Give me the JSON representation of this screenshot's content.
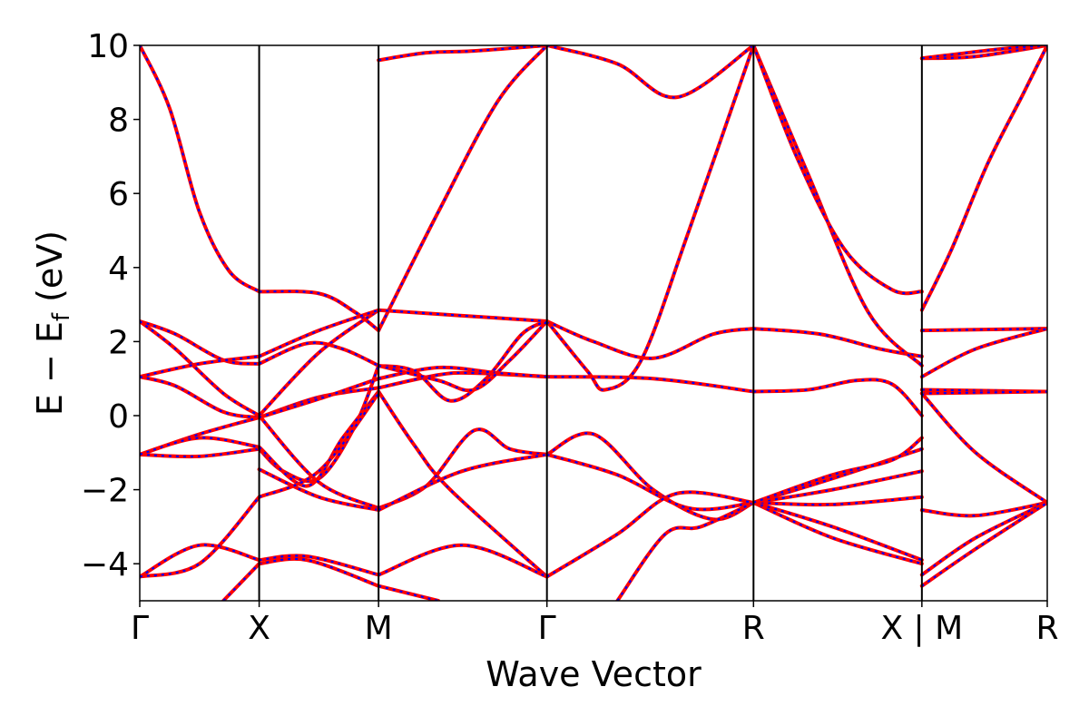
{
  "chart_data": {
    "type": "line",
    "xlabel": "Wave Vector",
    "ylabel": "E − E",
    "ylabel_subscript": "f",
    "ylabel_unit": " (eV)",
    "ylim": [
      -5,
      10
    ],
    "yticks": [
      -4,
      -2,
      0,
      2,
      4,
      6,
      8,
      10
    ],
    "xlim": [
      0,
      7.6
    ],
    "kpoints": [
      {
        "label": "Γ",
        "x": 0
      },
      {
        "label": "X",
        "x": 1
      },
      {
        "label": "M",
        "x": 2
      },
      {
        "label": "Γ",
        "x": 3.41
      },
      {
        "label": "R",
        "x": 5.14
      },
      {
        "label": "X | M",
        "x": 6.55
      },
      {
        "label": "R",
        "x": 7.6
      }
    ],
    "series_colors": {
      "solid": "#ff0000",
      "dashed": "#0000ff"
    },
    "bands": [
      {
        "segment": "Γ-X",
        "x": [
          0,
          0.25,
          0.5,
          0.75,
          1
        ],
        "y": [
          10,
          8.3,
          5.5,
          3.9,
          3.35
        ]
      },
      {
        "segment": "X-M",
        "x": [
          1,
          1.5,
          1.8,
          2
        ],
        "y": [
          3.35,
          3.3,
          2.8,
          2.3
        ]
      },
      {
        "segment": "M-Γ",
        "x": [
          2,
          2.5,
          3,
          3.41
        ],
        "y": [
          2.3,
          5.5,
          8.5,
          10
        ]
      },
      {
        "segment": "Γ-X",
        "x": [
          0,
          0.3,
          0.7,
          1
        ],
        "y": [
          2.55,
          2.2,
          1.5,
          1.4
        ]
      },
      {
        "segment": "X-M",
        "x": [
          1,
          1.4,
          1.7,
          2
        ],
        "y": [
          1.4,
          1.95,
          1.8,
          1.35
        ]
      },
      {
        "segment": "M-Γ",
        "x": [
          2,
          2.3,
          2.6,
          2.9,
          3.2,
          3.41
        ],
        "y": [
          1.35,
          1.2,
          0.4,
          1.0,
          2.2,
          2.55
        ]
      },
      {
        "segment": "Γ-X",
        "x": [
          0,
          0.3,
          0.7,
          1
        ],
        "y": [
          2.55,
          1.8,
          0.6,
          0.0
        ]
      },
      {
        "segment": "X-M",
        "x": [
          1,
          1.5,
          2
        ],
        "y": [
          0.0,
          1.7,
          2.85
        ]
      },
      {
        "segment": "M-Γ",
        "x": [
          2,
          2.7,
          3.41
        ],
        "y": [
          2.85,
          2.7,
          2.55
        ]
      },
      {
        "segment": "Γ-R",
        "x": [
          3.41,
          3.8,
          4.3,
          4.8,
          5.14
        ],
        "y": [
          2.55,
          2.0,
          1.55,
          2.2,
          2.35
        ]
      },
      {
        "segment": "R-X",
        "x": [
          5.14,
          5.7,
          6.2,
          6.55
        ],
        "y": [
          2.35,
          2.2,
          1.8,
          1.6
        ]
      },
      {
        "segment": "Γ-X",
        "x": [
          0,
          0.5,
          1
        ],
        "y": [
          1.05,
          1.4,
          1.6
        ]
      },
      {
        "segment": "X-M",
        "x": [
          1,
          1.5,
          2
        ],
        "y": [
          1.6,
          2.3,
          2.85
        ]
      },
      {
        "segment": "Γ-X",
        "x": [
          0,
          0.3,
          0.7,
          1
        ],
        "y": [
          1.05,
          0.8,
          0.1,
          -0.05
        ]
      },
      {
        "segment": "X-M",
        "x": [
          1,
          1.5,
          2
        ],
        "y": [
          -0.05,
          0.5,
          0.75
        ]
      },
      {
        "segment": "M-Γ",
        "x": [
          2,
          2.5,
          2.8,
          3.41
        ],
        "y": [
          0.75,
          1.1,
          1.15,
          1.05
        ]
      },
      {
        "segment": "Γ-R",
        "x": [
          3.41,
          4.3,
          5.14
        ],
        "y": [
          1.05,
          1.0,
          0.65
        ]
      },
      {
        "segment": "R-X",
        "x": [
          5.14,
          5.6,
          6.0,
          6.3,
          6.55
        ],
        "y": [
          0.65,
          0.7,
          0.95,
          0.85,
          0.0
        ]
      },
      {
        "segment": "Γ-X",
        "x": [
          0,
          0.5,
          1
        ],
        "y": [
          -1.05,
          -0.5,
          -0.05
        ]
      },
      {
        "segment": "X-M",
        "x": [
          1,
          1.5,
          2
        ],
        "y": [
          -0.05,
          0.45,
          1.0
        ]
      },
      {
        "segment": "M-Γ",
        "x": [
          2,
          2.5,
          3,
          3.41
        ],
        "y": [
          1.0,
          1.3,
          1.15,
          1.05
        ]
      },
      {
        "segment": "Γ-R",
        "x": [
          3.41,
          3.75,
          3.9,
          4.2,
          4.6,
          5.14
        ],
        "y": [
          2.55,
          1.2,
          0.7,
          1.5,
          5.0,
          10.0
        ]
      },
      {
        "segment": "R-X",
        "x": [
          5.14,
          5.6,
          6.1,
          6.55
        ],
        "y": [
          10.0,
          6.5,
          2.8,
          1.35
        ]
      },
      {
        "segment": "Γ-X",
        "x": [
          0,
          0.5,
          1
        ],
        "y": [
          -1.05,
          -1.1,
          -0.9
        ]
      },
      {
        "segment": "X-M",
        "x": [
          1,
          1.2,
          1.5,
          1.8,
          2
        ],
        "y": [
          -0.9,
          -1.5,
          -1.7,
          -0.3,
          1.35
        ]
      },
      {
        "segment": "M-Γ",
        "x": [
          2,
          2.5,
          2.8,
          3.1,
          3.41
        ],
        "y": [
          1.35,
          0.95,
          0.7,
          1.5,
          2.55
        ]
      },
      {
        "segment": "Γ-X",
        "x": [
          0,
          0.5,
          1
        ],
        "y": [
          -1.05,
          -0.6,
          -0.85
        ]
      },
      {
        "segment": "X-M",
        "x": [
          1,
          1.4,
          1.7,
          2
        ],
        "y": [
          -0.85,
          -1.9,
          -0.6,
          0.65
        ]
      },
      {
        "segment": "M-Γ",
        "x": [
          2,
          2.3,
          2.6,
          3.41
        ],
        "y": [
          0.65,
          -0.8,
          -2.0,
          -4.35
        ]
      },
      {
        "segment": "X-M",
        "x": [
          1,
          1.5,
          2
        ],
        "y": [
          0.0,
          -1.8,
          -2.5
        ]
      },
      {
        "segment": "M-Γ",
        "x": [
          2,
          2.4,
          2.8,
          3.1,
          3.41
        ],
        "y": [
          -2.5,
          -1.9,
          -0.4,
          -0.9,
          -1.05
        ]
      },
      {
        "segment": "Γ-R",
        "x": [
          3.41,
          3.8,
          4.3,
          4.8,
          5.14
        ],
        "y": [
          -1.05,
          -0.5,
          -2.0,
          -2.8,
          -2.35
        ]
      },
      {
        "segment": "X-M",
        "x": [
          1,
          1.5,
          2
        ],
        "y": [
          -1.45,
          -2.2,
          -2.55
        ]
      },
      {
        "segment": "M-Γ",
        "x": [
          2,
          2.7,
          3.41
        ],
        "y": [
          -2.55,
          -1.5,
          -1.05
        ]
      },
      {
        "segment": "Γ-R",
        "x": [
          3.41,
          4.0,
          4.6,
          5.14
        ],
        "y": [
          -1.05,
          -1.6,
          -2.5,
          -2.35
        ]
      },
      {
        "segment": "Γ-X",
        "x": [
          0,
          0.5,
          1
        ],
        "y": [
          -4.35,
          -3.5,
          -3.9
        ]
      },
      {
        "segment": "X-M",
        "x": [
          1,
          1.4,
          2
        ],
        "y": [
          -3.9,
          -3.8,
          -4.3
        ]
      },
      {
        "segment": "M-Γ",
        "x": [
          2,
          2.7,
          3.41
        ],
        "y": [
          -4.3,
          -3.5,
          -4.35
        ]
      },
      {
        "segment": "Γ-R",
        "x": [
          3.41,
          4.0,
          4.5,
          5.14
        ],
        "y": [
          -4.35,
          -3.2,
          -2.1,
          -2.35
        ]
      },
      {
        "segment": "Γ-X",
        "x": [
          0,
          0.5,
          1
        ],
        "y": [
          -4.35,
          -4.0,
          -2.2
        ]
      },
      {
        "segment": "X-M",
        "x": [
          1,
          1.5,
          2
        ],
        "y": [
          -2.2,
          -1.5,
          0.6
        ]
      },
      {
        "segment": "X-M",
        "x": [
          1,
          1.4,
          2
        ],
        "y": [
          -4.0,
          -3.9,
          -4.6
        ]
      },
      {
        "segment": "M-Γ",
        "x": [
          2,
          2.5
        ],
        "y": [
          -4.6,
          -5.0
        ]
      },
      {
        "segment": "Γ-X",
        "x": [
          0.7,
          1
        ],
        "y": [
          -5.0,
          -4.0
        ]
      },
      {
        "segment": "Γ-R",
        "x": [
          4.0,
          4.4,
          4.7,
          5.14
        ],
        "y": [
          -5.0,
          -3.2,
          -3.0,
          -2.35
        ]
      },
      {
        "segment": "R-X",
        "x": [
          5.14,
          5.8,
          6.55
        ],
        "y": [
          -2.35,
          -3.3,
          -4.0
        ]
      },
      {
        "segment": "R-X",
        "x": [
          5.14,
          5.8,
          6.55
        ],
        "y": [
          -2.35,
          -3.0,
          -3.9
        ]
      },
      {
        "segment": "R-X",
        "x": [
          5.14,
          5.8,
          6.55
        ],
        "y": [
          -2.35,
          -2.4,
          -2.2
        ]
      },
      {
        "segment": "R-X",
        "x": [
          5.14,
          5.8,
          6.55
        ],
        "y": [
          -2.35,
          -2.0,
          -1.5
        ]
      },
      {
        "segment": "R-X",
        "x": [
          5.14,
          5.8,
          6.55
        ],
        "y": [
          -2.35,
          -1.7,
          -0.9
        ]
      },
      {
        "segment": "R-X",
        "x": [
          5.14,
          5.8,
          6.3,
          6.55
        ],
        "y": [
          -2.35,
          -1.6,
          -1.2,
          -0.6
        ]
      },
      {
        "segment": "M-Γ",
        "x": [
          2,
          2.4,
          2.8,
          3.41
        ],
        "y": [
          9.6,
          9.8,
          9.85,
          10.0
        ]
      },
      {
        "segment": "Γ-R",
        "x": [
          3.41,
          4.0,
          4.5,
          5.14
        ],
        "y": [
          10.0,
          9.5,
          8.6,
          10.0
        ]
      },
      {
        "segment": "R-X",
        "x": [
          5.14,
          5.5,
          5.9,
          6.3,
          6.55
        ],
        "y": [
          10.0,
          7.0,
          4.5,
          3.4,
          3.35
        ]
      },
      {
        "segment": "M-R",
        "x": [
          6.55,
          6.8,
          7.1,
          7.4,
          7.6
        ],
        "y": [
          2.85,
          4.5,
          6.8,
          8.7,
          10.0
        ]
      },
      {
        "segment": "M-R",
        "x": [
          6.55,
          7.0,
          7.6
        ],
        "y": [
          9.65,
          9.7,
          10.0
        ]
      },
      {
        "segment": "M-R",
        "x": [
          6.55,
          7.2,
          7.6
        ],
        "y": [
          9.65,
          9.9,
          10.0
        ]
      },
      {
        "segment": "M-R",
        "x": [
          6.55,
          7.6
        ],
        "y": [
          2.3,
          2.35
        ]
      },
      {
        "segment": "M-R",
        "x": [
          6.55,
          7.0,
          7.6
        ],
        "y": [
          1.05,
          1.8,
          2.35
        ]
      },
      {
        "segment": "M-R",
        "x": [
          6.55,
          7.6
        ],
        "y": [
          0.7,
          0.65
        ]
      },
      {
        "segment": "M-R",
        "x": [
          6.55,
          7.6
        ],
        "y": [
          0.6,
          0.65
        ]
      },
      {
        "segment": "M-R",
        "x": [
          6.55,
          7.0,
          7.6
        ],
        "y": [
          0.6,
          -1.0,
          -2.35
        ]
      },
      {
        "segment": "M-R",
        "x": [
          6.55,
          7.0,
          7.6
        ],
        "y": [
          -2.55,
          -2.7,
          -2.35
        ]
      },
      {
        "segment": "M-R",
        "x": [
          6.55,
          7.0,
          7.6
        ],
        "y": [
          -4.3,
          -3.3,
          -2.35
        ]
      },
      {
        "segment": "M-R",
        "x": [
          6.55,
          7.0,
          7.6
        ],
        "y": [
          -4.6,
          -3.6,
          -2.35
        ]
      }
    ]
  }
}
